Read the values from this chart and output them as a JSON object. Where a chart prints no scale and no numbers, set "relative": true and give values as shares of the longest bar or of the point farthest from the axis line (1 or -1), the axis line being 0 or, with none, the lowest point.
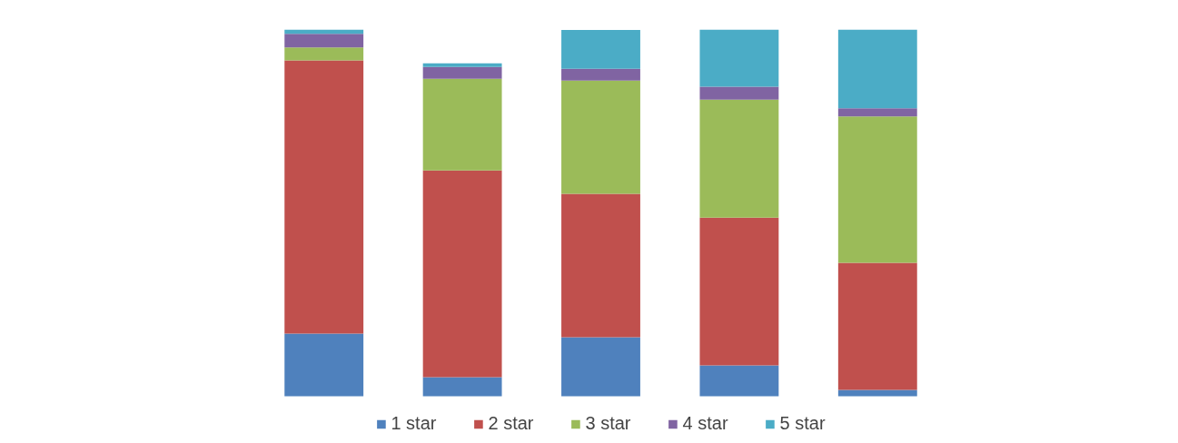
{
  "chart_data": {
    "type": "bar",
    "stacked": true,
    "relative": true,
    "categories": [
      null,
      null,
      null,
      null,
      null
    ],
    "series": [
      {
        "name": "1 star",
        "color": "#4f81bd",
        "values": [
          0.171,
          0.052,
          0.161,
          0.084,
          0.017
        ]
      },
      {
        "name": "2 star",
        "color": "#c0504d",
        "values": [
          0.745,
          0.564,
          0.391,
          0.403,
          0.347
        ]
      },
      {
        "name": "3 star",
        "color": "#9bbb59",
        "values": [
          0.035,
          0.25,
          0.309,
          0.322,
          0.399
        ]
      },
      {
        "name": "4 star",
        "color": "#8064a2",
        "values": [
          0.037,
          0.032,
          0.032,
          0.035,
          0.022
        ]
      },
      {
        "name": "5 star",
        "color": "#4bacc6",
        "values": [
          0.012,
          0.01,
          0.106,
          0.156,
          0.215
        ]
      }
    ],
    "legend": "bottom",
    "grid": false
  }
}
